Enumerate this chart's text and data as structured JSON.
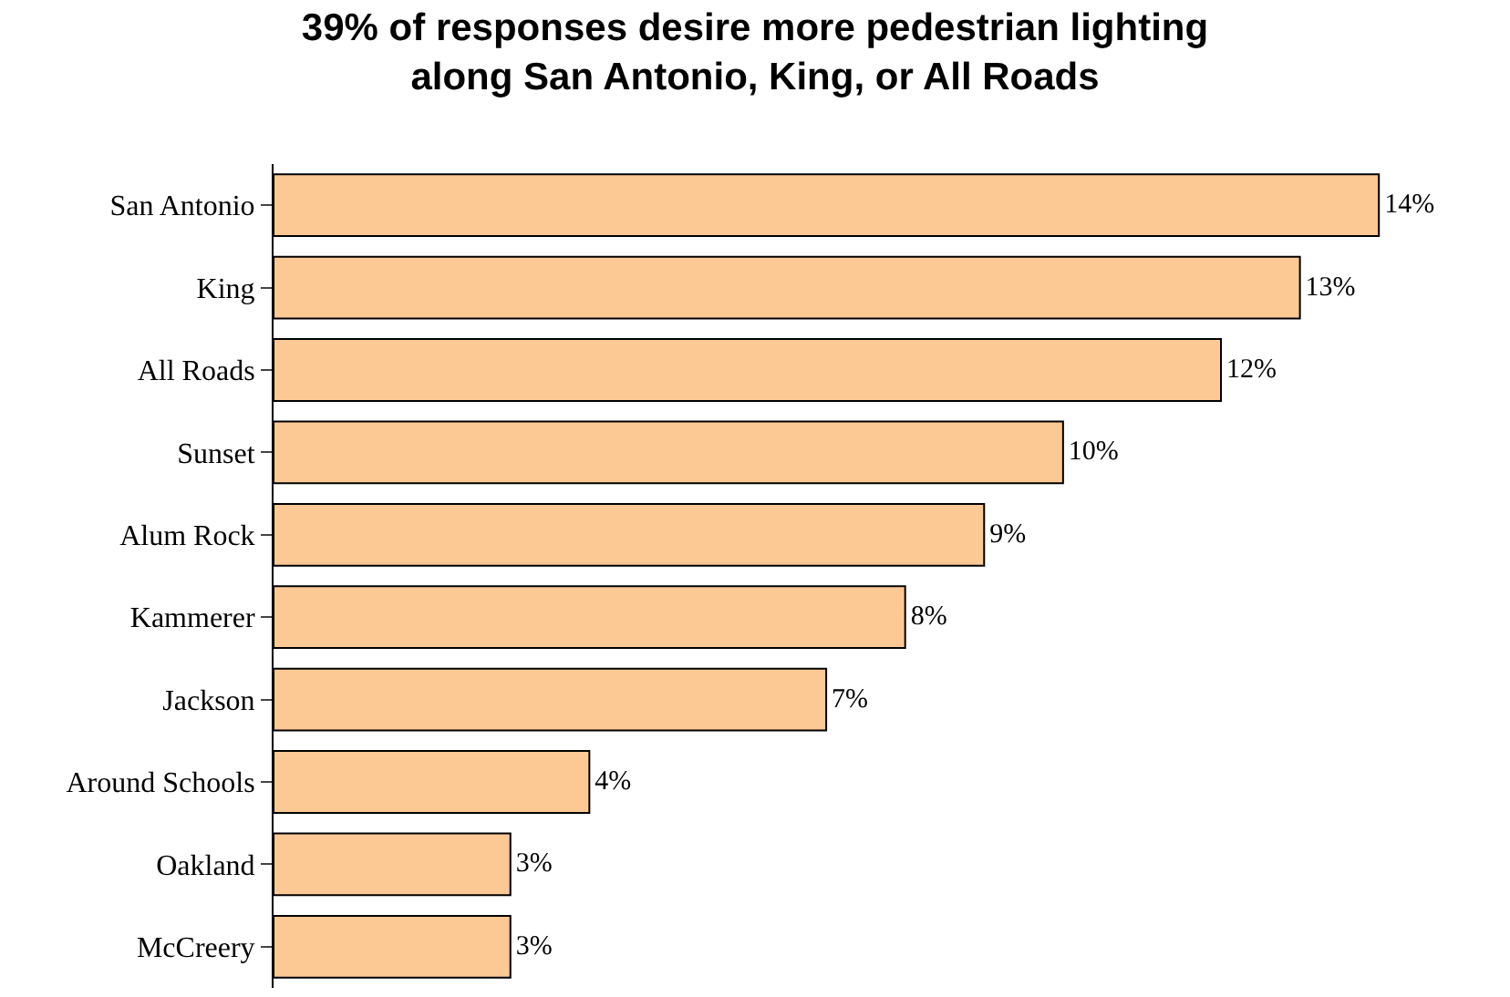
{
  "chart_data": {
    "type": "bar",
    "orientation": "horizontal",
    "title": "39% of responses desire more pedestrian lighting along San Antonio, King, or All Roads",
    "categories": [
      "San Antonio",
      "King",
      "All Roads",
      "Sunset",
      "Alum Rock",
      "Kammerer",
      "Jackson",
      "Around Schools",
      "Oakland",
      "McCreery"
    ],
    "values": [
      14,
      13,
      12,
      10,
      9,
      8,
      7,
      4,
      3,
      3
    ],
    "value_labels": [
      "14%",
      "13%",
      "12%",
      "10%",
      "9%",
      "8%",
      "7%",
      "4%",
      "3%",
      "3%"
    ],
    "color": "#fcc894"
  }
}
